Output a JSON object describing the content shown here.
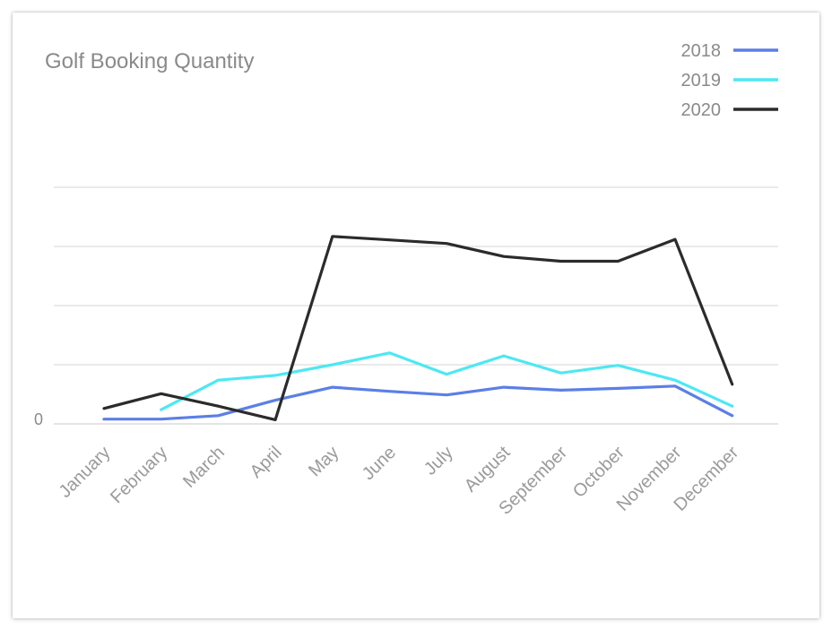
{
  "chart_data": {
    "type": "line",
    "title": "Golf Booking Quantity",
    "xlabel": "",
    "ylabel": "",
    "categories": [
      "January",
      "February",
      "March",
      "April",
      "May",
      "June",
      "July",
      "August",
      "September",
      "October",
      "November",
      "December"
    ],
    "y_tick_labels": [
      "0"
    ],
    "ylim": [
      0,
      400
    ],
    "grid": true,
    "legend_position": "top-right",
    "series": [
      {
        "name": "2018",
        "color": "#5b7fe6",
        "values": [
          8,
          8,
          14,
          40,
          62,
          55,
          49,
          62,
          57,
          60,
          64,
          14
        ]
      },
      {
        "name": "2019",
        "color": "#4de8f2",
        "values": [
          null,
          24,
          74,
          82,
          100,
          120,
          84,
          115,
          86,
          99,
          74,
          30
        ]
      },
      {
        "name": "2020",
        "color": "#2b2b2b",
        "values": [
          26,
          51,
          30,
          7,
          317,
          311,
          305,
          283,
          275,
          275,
          312,
          67
        ]
      }
    ]
  }
}
